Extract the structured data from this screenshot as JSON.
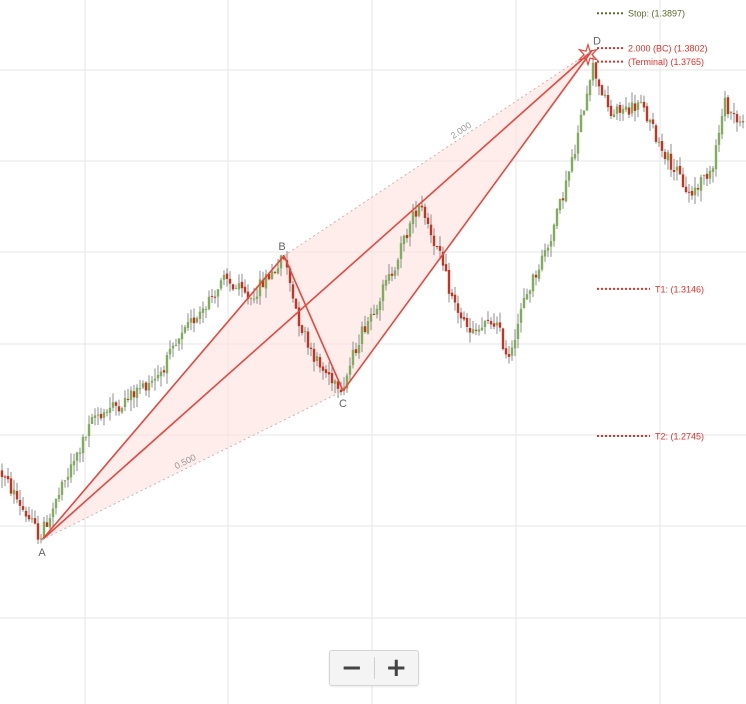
{
  "chart_data": {
    "type": "candlestick",
    "pattern": {
      "points": [
        {
          "label": "A",
          "price": 1.2462
        },
        {
          "label": "B",
          "price": 1.3236
        },
        {
          "label": "C",
          "price": 1.2868
        },
        {
          "label": "D",
          "price": 1.3795
        }
      ],
      "ratios": [
        {
          "label": "2.000",
          "from": "B",
          "to": "D"
        },
        {
          "label": "0.500",
          "from": "A",
          "to": "C"
        }
      ]
    },
    "levels": [
      {
        "name": "stop",
        "text": "Stop: (1.3897)",
        "price": 1.3897,
        "color": "#5a6b2e"
      },
      {
        "name": "bc",
        "text": "2.000 (BC) (1.3802)",
        "price": 1.3802,
        "color": "#e0312b"
      },
      {
        "name": "terminal",
        "text": "(Terminal) (1.3765)",
        "price": 1.3765,
        "color": "#e0312b"
      },
      {
        "name": "t1",
        "text": "T1: (1.3146)",
        "price": 1.3146,
        "color": "#e0312b"
      },
      {
        "name": "t2",
        "text": "T2: (1.2745)",
        "price": 1.2745,
        "color": "#e0312b"
      }
    ],
    "grid": true,
    "colors": {
      "up": "#7fae5a",
      "down": "#c8321f",
      "pattern_line": "#e8473d",
      "pattern_fill": "#fde3e1",
      "wick": "#8c8c8c"
    }
  },
  "zoom": {
    "minus_label": "−",
    "plus_label": "+"
  }
}
